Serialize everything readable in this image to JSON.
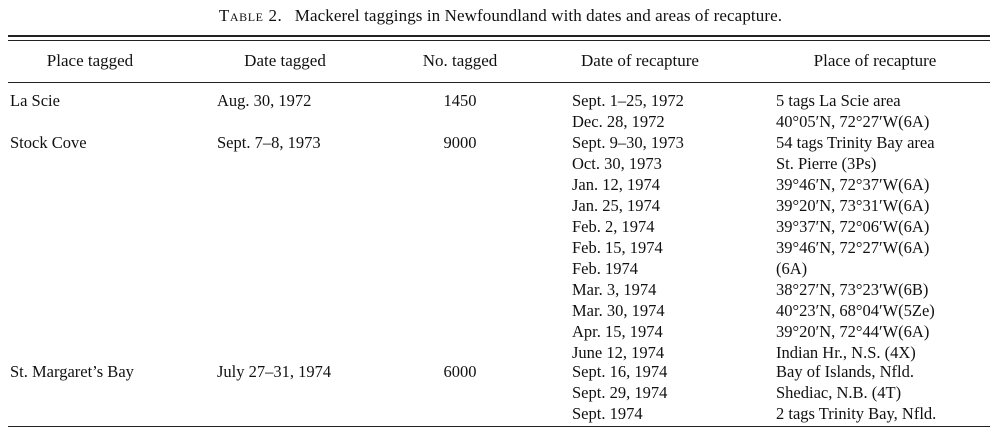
{
  "table": {
    "caption_label": "Table 2.",
    "caption_text": "Mackerel taggings in Newfoundland with dates and areas of recapture.",
    "columns": [
      "Place tagged",
      "Date tagged",
      "No. tagged",
      "Date of recapture",
      "Place of recapture"
    ],
    "groups": [
      {
        "place": "La Scie",
        "date": "Aug. 30, 1972",
        "number": "1450",
        "recaptures": [
          {
            "date": "Sept. 1–25, 1972",
            "place": "5 tags La Scie area"
          },
          {
            "date": "Dec. 28, 1972",
            "place": "40°05′N, 72°27′W(6A)"
          }
        ]
      },
      {
        "place": "Stock Cove",
        "date": "Sept. 7–8, 1973",
        "number": "9000",
        "recaptures": [
          {
            "date": "Sept. 9–30, 1973",
            "place": "54 tags Trinity Bay area"
          },
          {
            "date": "Oct. 30, 1973",
            "place": "St. Pierre (3Ps)"
          },
          {
            "date": "Jan. 12, 1974",
            "place": "39°46′N, 72°37′W(6A)"
          },
          {
            "date": "Jan. 25, 1974",
            "place": "39°20′N, 73°31′W(6A)"
          },
          {
            "date": "Feb. 2, 1974",
            "place": "39°37′N, 72°06′W(6A)"
          },
          {
            "date": "Feb. 15, 1974",
            "place": "39°46′N, 72°27′W(6A)"
          },
          {
            "date": "Feb. 1974",
            "place": "(6A)"
          },
          {
            "date": "Mar. 3, 1974",
            "place": "38°27′N, 73°23′W(6B)"
          },
          {
            "date": "Mar. 30, 1974",
            "place": "40°23′N, 68°04′W(5Ze)"
          },
          {
            "date": "Apr. 15, 1974",
            "place": "39°20′N, 72°44′W(6A)"
          },
          {
            "date": "June 12, 1974",
            "place": "Indian Hr., N.S. (4X)"
          }
        ]
      },
      {
        "place": "St. Margaret’s Bay",
        "date": "July 27–31, 1974",
        "number": "6000",
        "recaptures": [
          {
            "date": "Sept. 16, 1974",
            "place": "Bay of Islands, Nfld."
          },
          {
            "date": "Sept. 29, 1974",
            "place": "Shediac, N.B. (4T)"
          },
          {
            "date": "Sept. 1974",
            "place": "2 tags Trinity Bay, Nfld."
          }
        ]
      }
    ]
  }
}
